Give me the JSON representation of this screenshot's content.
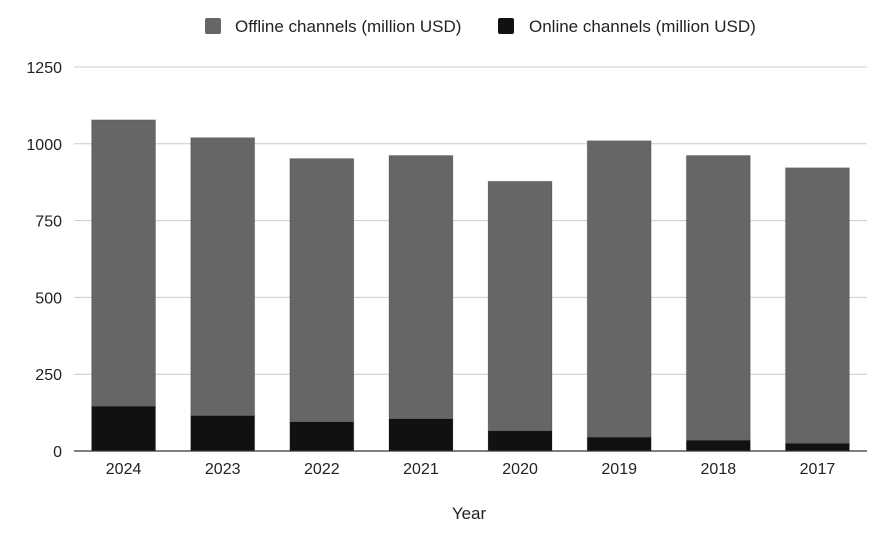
{
  "chart_data": {
    "type": "bar",
    "stacked": true,
    "xlabel": "Year",
    "ylabel": "",
    "ylim": [
      0,
      1250
    ],
    "yticks": [
      0,
      250,
      500,
      750,
      1000,
      1250
    ],
    "grid": true,
    "legend_position": "top",
    "categories": [
      "2024",
      "2023",
      "2022",
      "2021",
      "2020",
      "2019",
      "2018",
      "2017"
    ],
    "series": [
      {
        "name": "Online channels (million USD)",
        "color": "#111111",
        "values": [
          145,
          115,
          95,
          105,
          65,
          45,
          35,
          25
        ]
      },
      {
        "name": "Offline channels (million USD)",
        "color": "#666666",
        "values": [
          933,
          905,
          857,
          857,
          813,
          965,
          927,
          897
        ]
      }
    ],
    "legend_order": [
      1,
      0
    ]
  }
}
